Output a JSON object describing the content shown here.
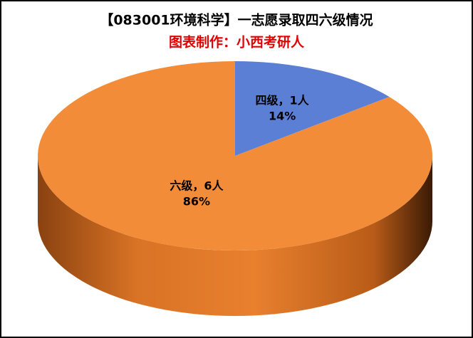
{
  "chart_data": {
    "type": "pie3d",
    "title": "【083001环境科学】一志愿录取四六级情况",
    "subtitle": "图表制作：小西考研人",
    "categories": [
      "四级",
      "六级"
    ],
    "values": [
      1,
      6
    ],
    "value_labels": [
      "四级，1人",
      "六级，6人"
    ],
    "percent_labels": [
      "14%",
      "86%"
    ],
    "colors": [
      "#5b7fd5",
      "#f28c38"
    ]
  }
}
